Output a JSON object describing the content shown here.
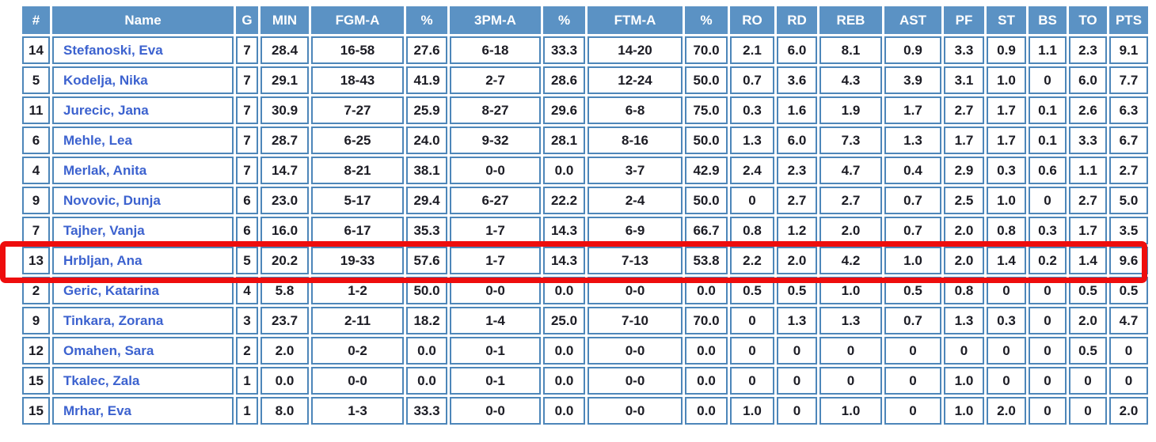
{
  "table": {
    "columns": [
      {
        "key": "num",
        "label": "#"
      },
      {
        "key": "name",
        "label": "Name"
      },
      {
        "key": "g",
        "label": "G"
      },
      {
        "key": "min",
        "label": "MIN"
      },
      {
        "key": "fgma",
        "label": "FGM-A"
      },
      {
        "key": "fgpct",
        "label": "%"
      },
      {
        "key": "tpma",
        "label": "3PM-A"
      },
      {
        "key": "tppct",
        "label": "%"
      },
      {
        "key": "ftma",
        "label": "FTM-A"
      },
      {
        "key": "ftpct",
        "label": "%"
      },
      {
        "key": "ro",
        "label": "RO"
      },
      {
        "key": "rd",
        "label": "RD"
      },
      {
        "key": "reb",
        "label": "REB"
      },
      {
        "key": "ast",
        "label": "AST"
      },
      {
        "key": "pf",
        "label": "PF"
      },
      {
        "key": "st",
        "label": "ST"
      },
      {
        "key": "bs",
        "label": "BS"
      },
      {
        "key": "to",
        "label": "TO"
      },
      {
        "key": "pts",
        "label": "PTS"
      }
    ],
    "rows": [
      {
        "num": "14",
        "name": "Stefanoski, Eva",
        "g": "7",
        "min": "28.4",
        "fgma": "16-58",
        "fgpct": "27.6",
        "tpma": "6-18",
        "tppct": "33.3",
        "ftma": "14-20",
        "ftpct": "70.0",
        "ro": "2.1",
        "rd": "6.0",
        "reb": "8.1",
        "ast": "0.9",
        "pf": "3.3",
        "st": "0.9",
        "bs": "1.1",
        "to": "2.3",
        "pts": "9.1"
      },
      {
        "num": "5",
        "name": "Kodelja, Nika",
        "g": "7",
        "min": "29.1",
        "fgma": "18-43",
        "fgpct": "41.9",
        "tpma": "2-7",
        "tppct": "28.6",
        "ftma": "12-24",
        "ftpct": "50.0",
        "ro": "0.7",
        "rd": "3.6",
        "reb": "4.3",
        "ast": "3.9",
        "pf": "3.1",
        "st": "1.0",
        "bs": "0",
        "to": "6.0",
        "pts": "7.7"
      },
      {
        "num": "11",
        "name": "Jurecic, Jana",
        "g": "7",
        "min": "30.9",
        "fgma": "7-27",
        "fgpct": "25.9",
        "tpma": "8-27",
        "tppct": "29.6",
        "ftma": "6-8",
        "ftpct": "75.0",
        "ro": "0.3",
        "rd": "1.6",
        "reb": "1.9",
        "ast": "1.7",
        "pf": "2.7",
        "st": "1.7",
        "bs": "0.1",
        "to": "2.6",
        "pts": "6.3"
      },
      {
        "num": "6",
        "name": "Mehle, Lea",
        "g": "7",
        "min": "28.7",
        "fgma": "6-25",
        "fgpct": "24.0",
        "tpma": "9-32",
        "tppct": "28.1",
        "ftma": "8-16",
        "ftpct": "50.0",
        "ro": "1.3",
        "rd": "6.0",
        "reb": "7.3",
        "ast": "1.3",
        "pf": "1.7",
        "st": "1.7",
        "bs": "0.1",
        "to": "3.3",
        "pts": "6.7"
      },
      {
        "num": "4",
        "name": "Merlak, Anita",
        "g": "7",
        "min": "14.7",
        "fgma": "8-21",
        "fgpct": "38.1",
        "tpma": "0-0",
        "tppct": "0.0",
        "ftma": "3-7",
        "ftpct": "42.9",
        "ro": "2.4",
        "rd": "2.3",
        "reb": "4.7",
        "ast": "0.4",
        "pf": "2.9",
        "st": "0.3",
        "bs": "0.6",
        "to": "1.1",
        "pts": "2.7"
      },
      {
        "num": "9",
        "name": "Novovic, Dunja",
        "g": "6",
        "min": "23.0",
        "fgma": "5-17",
        "fgpct": "29.4",
        "tpma": "6-27",
        "tppct": "22.2",
        "ftma": "2-4",
        "ftpct": "50.0",
        "ro": "0",
        "rd": "2.7",
        "reb": "2.7",
        "ast": "0.7",
        "pf": "2.5",
        "st": "1.0",
        "bs": "0",
        "to": "2.7",
        "pts": "5.0"
      },
      {
        "num": "7",
        "name": "Tajher, Vanja",
        "g": "6",
        "min": "16.0",
        "fgma": "6-17",
        "fgpct": "35.3",
        "tpma": "1-7",
        "tppct": "14.3",
        "ftma": "6-9",
        "ftpct": "66.7",
        "ro": "0.8",
        "rd": "1.2",
        "reb": "2.0",
        "ast": "0.7",
        "pf": "2.0",
        "st": "0.8",
        "bs": "0.3",
        "to": "1.7",
        "pts": "3.5"
      },
      {
        "num": "13",
        "name": "Hrbljan, Ana",
        "g": "5",
        "min": "20.2",
        "fgma": "19-33",
        "fgpct": "57.6",
        "tpma": "1-7",
        "tppct": "14.3",
        "ftma": "7-13",
        "ftpct": "53.8",
        "ro": "2.2",
        "rd": "2.0",
        "reb": "4.2",
        "ast": "1.0",
        "pf": "2.0",
        "st": "1.4",
        "bs": "0.2",
        "to": "1.4",
        "pts": "9.6"
      },
      {
        "num": "2",
        "name": "Geric, Katarina",
        "g": "4",
        "min": "5.8",
        "fgma": "1-2",
        "fgpct": "50.0",
        "tpma": "0-0",
        "tppct": "0.0",
        "ftma": "0-0",
        "ftpct": "0.0",
        "ro": "0.5",
        "rd": "0.5",
        "reb": "1.0",
        "ast": "0.5",
        "pf": "0.8",
        "st": "0",
        "bs": "0",
        "to": "0.5",
        "pts": "0.5"
      },
      {
        "num": "9",
        "name": "Tinkara, Zorana",
        "g": "3",
        "min": "23.7",
        "fgma": "2-11",
        "fgpct": "18.2",
        "tpma": "1-4",
        "tppct": "25.0",
        "ftma": "7-10",
        "ftpct": "70.0",
        "ro": "0",
        "rd": "1.3",
        "reb": "1.3",
        "ast": "0.7",
        "pf": "1.3",
        "st": "0.3",
        "bs": "0",
        "to": "2.0",
        "pts": "4.7"
      },
      {
        "num": "12",
        "name": "Omahen, Sara",
        "g": "2",
        "min": "2.0",
        "fgma": "0-2",
        "fgpct": "0.0",
        "tpma": "0-1",
        "tppct": "0.0",
        "ftma": "0-0",
        "ftpct": "0.0",
        "ro": "0",
        "rd": "0",
        "reb": "0",
        "ast": "0",
        "pf": "0",
        "st": "0",
        "bs": "0",
        "to": "0.5",
        "pts": "0"
      },
      {
        "num": "15",
        "name": "Tkalec, Zala",
        "g": "1",
        "min": "0.0",
        "fgma": "0-0",
        "fgpct": "0.0",
        "tpma": "0-1",
        "tppct": "0.0",
        "ftma": "0-0",
        "ftpct": "0.0",
        "ro": "0",
        "rd": "0",
        "reb": "0",
        "ast": "0",
        "pf": "1.0",
        "st": "0",
        "bs": "0",
        "to": "0",
        "pts": "0"
      },
      {
        "num": "15",
        "name": "Mrhar, Eva",
        "g": "1",
        "min": "8.0",
        "fgma": "1-3",
        "fgpct": "33.3",
        "tpma": "0-0",
        "tppct": "0.0",
        "ftma": "0-0",
        "ftpct": "0.0",
        "ro": "1.0",
        "rd": "0",
        "reb": "1.0",
        "ast": "0",
        "pf": "1.0",
        "st": "2.0",
        "bs": "0",
        "to": "0",
        "pts": "2.0"
      }
    ],
    "highlight_row_index": 7,
    "colors": {
      "header_bg": "#5b92c4",
      "cell_border": "#4d86b9",
      "link_color": "#3c62cf",
      "number_color": "#1c1c24",
      "highlight_color": "#ee0d0d"
    }
  }
}
